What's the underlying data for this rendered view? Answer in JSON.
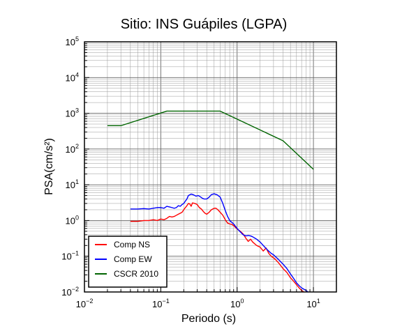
{
  "chart_data": {
    "type": "line",
    "title": "Sitio: INS Guápiles (LGPA)",
    "xlabel": "Periodo (s)",
    "ylabel": "PSA(cm/s²)",
    "xscale": "log",
    "yscale": "log",
    "xlim": [
      0.01,
      20
    ],
    "ylim": [
      0.01,
      100000
    ],
    "xticks": [
      {
        "base": "10",
        "exp": "−2",
        "value": 0.01
      },
      {
        "base": "10",
        "exp": "−1",
        "value": 0.1
      },
      {
        "base": "10",
        "exp": "0",
        "value": 1
      },
      {
        "base": "10",
        "exp": "1",
        "value": 10
      }
    ],
    "yticks": [
      {
        "base": "10",
        "exp": "−2",
        "value": 0.01
      },
      {
        "base": "10",
        "exp": "−1",
        "value": 0.1
      },
      {
        "base": "10",
        "exp": "0",
        "value": 1
      },
      {
        "base": "10",
        "exp": "1",
        "value": 10
      },
      {
        "base": "10",
        "exp": "2",
        "value": 100
      },
      {
        "base": "10",
        "exp": "3",
        "value": 1000
      },
      {
        "base": "10",
        "exp": "4",
        "value": 10000
      },
      {
        "base": "10",
        "exp": "5",
        "value": 100000
      }
    ],
    "grid": true,
    "legend_position": "bottom-left",
    "series": [
      {
        "name": "Comp NS",
        "color": "#ff0000",
        "points": [
          [
            0.04,
            0.95
          ],
          [
            0.05,
            0.95
          ],
          [
            0.06,
            1.0
          ],
          [
            0.07,
            1.0
          ],
          [
            0.08,
            1.05
          ],
          [
            0.09,
            1.0
          ],
          [
            0.1,
            1.1
          ],
          [
            0.11,
            1.05
          ],
          [
            0.12,
            1.15
          ],
          [
            0.13,
            1.3
          ],
          [
            0.14,
            1.25
          ],
          [
            0.15,
            1.3
          ],
          [
            0.16,
            1.4
          ],
          [
            0.17,
            1.5
          ],
          [
            0.18,
            1.6
          ],
          [
            0.19,
            1.7
          ],
          [
            0.2,
            2.0
          ],
          [
            0.21,
            2.3
          ],
          [
            0.22,
            2.6
          ],
          [
            0.23,
            3.0
          ],
          [
            0.24,
            2.9
          ],
          [
            0.25,
            2.5
          ],
          [
            0.26,
            3.1
          ],
          [
            0.28,
            3.0
          ],
          [
            0.3,
            2.8
          ],
          [
            0.32,
            2.3
          ],
          [
            0.34,
            2.1
          ],
          [
            0.36,
            1.8
          ],
          [
            0.38,
            1.6
          ],
          [
            0.4,
            1.5
          ],
          [
            0.43,
            1.7
          ],
          [
            0.46,
            2.0
          ],
          [
            0.5,
            2.2
          ],
          [
            0.53,
            2.2
          ],
          [
            0.56,
            2.0
          ],
          [
            0.6,
            1.7
          ],
          [
            0.65,
            1.4
          ],
          [
            0.7,
            1.05
          ],
          [
            0.75,
            0.85
          ],
          [
            0.8,
            0.8
          ],
          [
            0.85,
            0.78
          ],
          [
            0.9,
            0.72
          ],
          [
            1.0,
            0.58
          ],
          [
            1.1,
            0.5
          ],
          [
            1.2,
            0.42
          ],
          [
            1.3,
            0.32
          ],
          [
            1.4,
            0.26
          ],
          [
            1.5,
            0.3
          ],
          [
            1.6,
            0.25
          ],
          [
            1.8,
            0.2
          ],
          [
            2.0,
            0.18
          ],
          [
            2.2,
            0.14
          ],
          [
            2.4,
            0.17
          ],
          [
            2.6,
            0.12
          ],
          [
            2.8,
            0.1
          ],
          [
            3.0,
            0.09
          ],
          [
            3.2,
            0.08
          ],
          [
            3.5,
            0.065
          ],
          [
            4.0,
            0.045
          ],
          [
            4.5,
            0.035
          ],
          [
            5.0,
            0.025
          ],
          [
            5.5,
            0.02
          ],
          [
            6.0,
            0.016
          ],
          [
            6.5,
            0.013
          ],
          [
            7.0,
            0.011
          ],
          [
            7.5,
            0.01
          ]
        ]
      },
      {
        "name": "Comp EW",
        "color": "#0000ff",
        "points": [
          [
            0.04,
            2.1
          ],
          [
            0.05,
            2.1
          ],
          [
            0.06,
            2.15
          ],
          [
            0.07,
            2.1
          ],
          [
            0.08,
            2.2
          ],
          [
            0.09,
            2.3
          ],
          [
            0.1,
            2.3
          ],
          [
            0.11,
            2.2
          ],
          [
            0.12,
            2.5
          ],
          [
            0.13,
            2.4
          ],
          [
            0.14,
            2.3
          ],
          [
            0.15,
            2.2
          ],
          [
            0.16,
            2.3
          ],
          [
            0.17,
            2.6
          ],
          [
            0.18,
            2.5
          ],
          [
            0.19,
            2.8
          ],
          [
            0.2,
            3.0
          ],
          [
            0.21,
            3.5
          ],
          [
            0.22,
            4.0
          ],
          [
            0.23,
            5.0
          ],
          [
            0.25,
            5.5
          ],
          [
            0.27,
            5.2
          ],
          [
            0.29,
            4.8
          ],
          [
            0.31,
            5.0
          ],
          [
            0.33,
            4.6
          ],
          [
            0.35,
            4.2
          ],
          [
            0.37,
            4.0
          ],
          [
            0.4,
            4.0
          ],
          [
            0.43,
            4.5
          ],
          [
            0.46,
            5.3
          ],
          [
            0.5,
            5.6
          ],
          [
            0.55,
            5.2
          ],
          [
            0.6,
            4.5
          ],
          [
            0.65,
            3.0
          ],
          [
            0.7,
            1.9
          ],
          [
            0.75,
            1.3
          ],
          [
            0.8,
            1.0
          ],
          [
            0.9,
            0.8
          ],
          [
            1.0,
            0.6
          ],
          [
            1.1,
            0.48
          ],
          [
            1.2,
            0.4
          ],
          [
            1.3,
            0.37
          ],
          [
            1.4,
            0.38
          ],
          [
            1.5,
            0.37
          ],
          [
            1.6,
            0.35
          ],
          [
            1.8,
            0.3
          ],
          [
            2.0,
            0.25
          ],
          [
            2.2,
            0.2
          ],
          [
            2.5,
            0.15
          ],
          [
            2.8,
            0.12
          ],
          [
            3.0,
            0.11
          ],
          [
            3.5,
            0.08
          ],
          [
            4.0,
            0.06
          ],
          [
            4.5,
            0.045
          ],
          [
            5.0,
            0.032
          ],
          [
            5.5,
            0.024
          ],
          [
            6.0,
            0.018
          ],
          [
            6.5,
            0.015
          ],
          [
            7.0,
            0.013
          ],
          [
            8.0,
            0.011
          ],
          [
            8.5,
            0.01
          ]
        ]
      },
      {
        "name": "CSCR 2010",
        "color": "#006400",
        "points": [
          [
            0.02,
            450
          ],
          [
            0.03,
            450
          ],
          [
            0.12,
            1150
          ],
          [
            0.6,
            1150
          ],
          [
            4.0,
            170
          ],
          [
            10.0,
            27
          ]
        ]
      }
    ]
  }
}
